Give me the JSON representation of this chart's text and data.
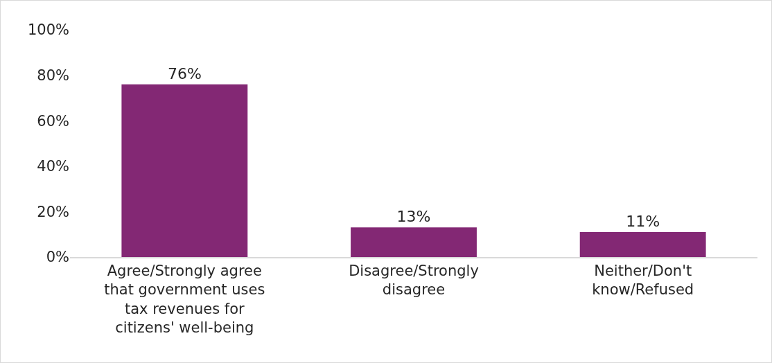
{
  "chart_data": {
    "type": "bar",
    "categories": [
      "Agree/Strongly agree that government uses tax revenues for citizens' well-being",
      "Disagree/Strongly disagree",
      "Neither/Don't know/Refused"
    ],
    "values": [
      76,
      13,
      11
    ],
    "value_labels": [
      "76%",
      "13%",
      "11%"
    ],
    "color": "#832874",
    "ylim": [
      0,
      100
    ],
    "yticks": [
      {
        "value": 0,
        "label": "0%"
      },
      {
        "value": 20,
        "label": "20%"
      },
      {
        "value": 40,
        "label": "40%"
      },
      {
        "value": 60,
        "label": "60%"
      },
      {
        "value": 80,
        "label": "80%"
      },
      {
        "value": 100,
        "label": "100%"
      }
    ]
  }
}
